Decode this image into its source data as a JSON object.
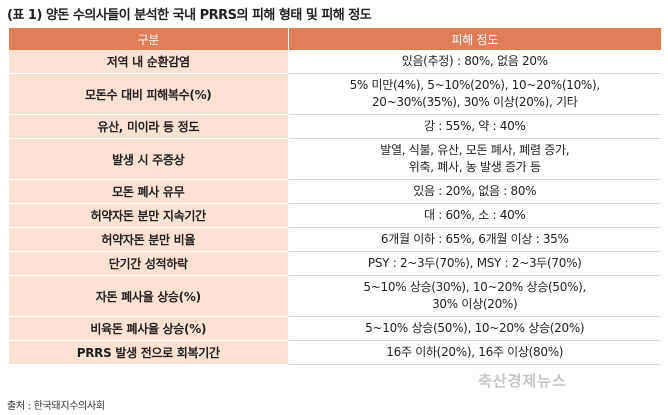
{
  "caption": "(표 1) 양돈 수의사들이 분석한 국내 PRRS의 피해 형태 및 피해 정도",
  "header": {
    "col1": "구분",
    "col2": "피해 정도"
  },
  "rows": [
    {
      "label": "저역 내 순환감염",
      "lines": [
        "있음(추정) : 80%, 없음 20%"
      ]
    },
    {
      "label": "모돈수 대비 피해복수(%)",
      "lines": [
        "5% 미만(4%), 5~10%(20%), 10~20%(10%),",
        "20~30%(35%), 30% 이상(20%), 기타"
      ]
    },
    {
      "label": "유산, 미이라 등 정도",
      "lines": [
        "강 : 55%, 약 : 40%"
      ]
    },
    {
      "label": "발생 시 주증상",
      "lines": [
        "발열, 식불, 유산, 모돈 폐사, 폐렴 증가,",
        "위축, 폐사, 농 발생 증가 등"
      ]
    },
    {
      "label": "모돈 폐사 유무",
      "lines": [
        "있음 : 20%, 없음 : 80%"
      ]
    },
    {
      "label": "허약자돈 분만 지속기간",
      "lines": [
        "대 : 60%, 소 : 40%"
      ]
    },
    {
      "label": "허약자돈 분만 비율",
      "lines": [
        "6개월 이하 : 65%, 6개월 이상 : 35%"
      ]
    },
    {
      "label": "단기간 성적하락",
      "lines": [
        "PSY : 2~3두(70%), MSY : 2~3두(70%)"
      ]
    },
    {
      "label": "자돈 폐사율 상승(%)",
      "lines": [
        "5~10% 상승(30%), 10~20% 상승(50%),",
        "30% 이상(20%)"
      ]
    },
    {
      "label": "비육돈 폐사율 상승(%)",
      "lines": [
        "5~10% 상승(50%), 10~20% 상승(20%)"
      ]
    },
    {
      "label": "PRRS 발생 전으로 회복기간",
      "lines": [
        "16주 이하(20%), 16주 이상(80%)"
      ]
    }
  ],
  "source": "출처 : 한국돼지수의사회",
  "watermark": "축산경제뉴스",
  "colors": {
    "header": "#e07e58",
    "label_bg": "#fbe2d4"
  }
}
